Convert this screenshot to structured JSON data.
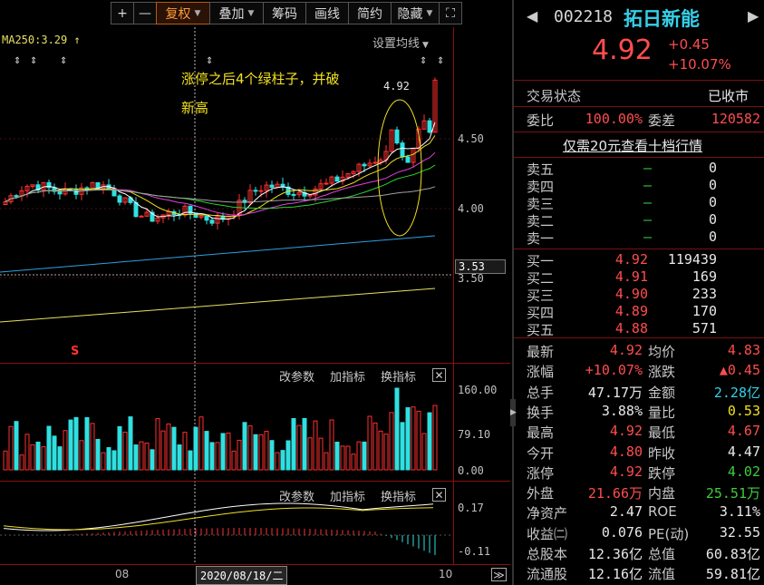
{
  "toolbar": {
    "buttons": [
      {
        "label": "+",
        "dropdown": false
      },
      {
        "label": "—",
        "dropdown": false
      },
      {
        "label": "复权",
        "dropdown": true,
        "active": true
      },
      {
        "label": "叠加",
        "dropdown": true
      },
      {
        "label": "筹码",
        "dropdown": false
      },
      {
        "label": "画线",
        "dropdown": false
      },
      {
        "label": "简约",
        "dropdown": false
      },
      {
        "label": "隐藏",
        "dropdown": true
      },
      {
        "label": "⛶",
        "dropdown": false
      }
    ]
  },
  "chart": {
    "ma_label": "MA250:3.29",
    "ma_arrow": "↑",
    "settings_label": "设置均线",
    "annotation_line1": "涨停之后4个绿柱子，并破",
    "annotation_line2": "新高",
    "high_price_label": "4.92",
    "price_axis": [
      "4.50",
      "4.00",
      "3.53",
      "3.50"
    ],
    "current_price_marker": "3.53",
    "volume_axis": [
      "160.00",
      "79.10",
      "0.00"
    ],
    "macd_axis": [
      "0.17",
      "-0.11"
    ],
    "sub_panel_buttons": [
      "改参数",
      "加指标",
      "换指标"
    ],
    "close_glyph": "✕",
    "date_labels": {
      "left": "08",
      "crosshair": "2020/08/18/二",
      "right": "10"
    },
    "nav_glyph": "≫",
    "signal_mark": "S",
    "colors": {
      "up": "#ff3030",
      "down": "#30e0e0",
      "ma5": "#ffffff",
      "ma10": "#f0e020",
      "ma20": "#e040e0",
      "ma30": "#30d030",
      "ma60": "#a0a0a0",
      "ma120": "#30a0e0",
      "ma250": "#e8e060"
    }
  },
  "quote": {
    "code": "002218",
    "name": "拓日新能",
    "price": "4.92",
    "change": "+0.45",
    "change_pct": "+10.07%",
    "trade_state_label": "交易状态",
    "trade_state_value": "已收市",
    "wb_label": "委比",
    "wb_value": "100.00%",
    "wc_label": "委差",
    "wc_value": "120582",
    "promo": "仅需20元查看十档行情",
    "sells": [
      {
        "label": "卖五",
        "price": "—",
        "vol": "0"
      },
      {
        "label": "卖四",
        "price": "—",
        "vol": "0"
      },
      {
        "label": "卖三",
        "price": "—",
        "vol": "0"
      },
      {
        "label": "卖二",
        "price": "—",
        "vol": "0"
      },
      {
        "label": "卖一",
        "price": "—",
        "vol": "0"
      }
    ],
    "buys": [
      {
        "label": "买一",
        "price": "4.92",
        "vol": "119439"
      },
      {
        "label": "买二",
        "price": "4.91",
        "vol": "169"
      },
      {
        "label": "买三",
        "price": "4.90",
        "vol": "233"
      },
      {
        "label": "买四",
        "price": "4.89",
        "vol": "170"
      },
      {
        "label": "买五",
        "price": "4.88",
        "vol": "571"
      }
    ],
    "stats": [
      {
        "l1": "最新",
        "v1": "4.92",
        "c1": "red",
        "l2": "均价",
        "v2": "4.83",
        "c2": "red"
      },
      {
        "l1": "涨幅",
        "v1": "+10.07%",
        "c1": "red",
        "l2": "涨跌",
        "v2": "▲0.45",
        "c2": "red"
      },
      {
        "l1": "总手",
        "v1": "47.17万",
        "c1": "white",
        "l2": "金额",
        "v2": "2.28亿",
        "c2": "cyan"
      },
      {
        "l1": "换手",
        "v1": "3.88%",
        "c1": "white",
        "l2": "量比",
        "v2": "0.53",
        "c2": "yellow"
      },
      {
        "l1": "最高",
        "v1": "4.92",
        "c1": "red",
        "l2": "最低",
        "v2": "4.67",
        "c2": "red"
      },
      {
        "l1": "今开",
        "v1": "4.80",
        "c1": "red",
        "l2": "昨收",
        "v2": "4.47",
        "c2": "white"
      },
      {
        "l1": "涨停",
        "v1": "4.92",
        "c1": "red",
        "l2": "跌停",
        "v2": "4.02",
        "c2": "green"
      },
      {
        "l1": "外盘",
        "v1": "21.66万",
        "c1": "red",
        "l2": "内盘",
        "v2": "25.51万",
        "c2": "green"
      },
      {
        "l1": "净资产",
        "v1": "2.47",
        "c1": "white",
        "l2": "ROE",
        "v2": "3.11%",
        "c2": "white"
      },
      {
        "l1": "收益㈡",
        "v1": "0.076",
        "c1": "white",
        "l2": "PE(动)",
        "v2": "32.55",
        "c2": "white"
      },
      {
        "l1": "总股本",
        "v1": "12.36亿",
        "c1": "white",
        "l2": "总值",
        "v2": "60.83亿",
        "c2": "white"
      },
      {
        "l1": "流通股",
        "v1": "12.16亿",
        "c1": "white",
        "l2": "流值",
        "v2": "59.81亿",
        "c2": "white"
      }
    ],
    "nav_prev": "◀",
    "nav_next": "▶"
  }
}
